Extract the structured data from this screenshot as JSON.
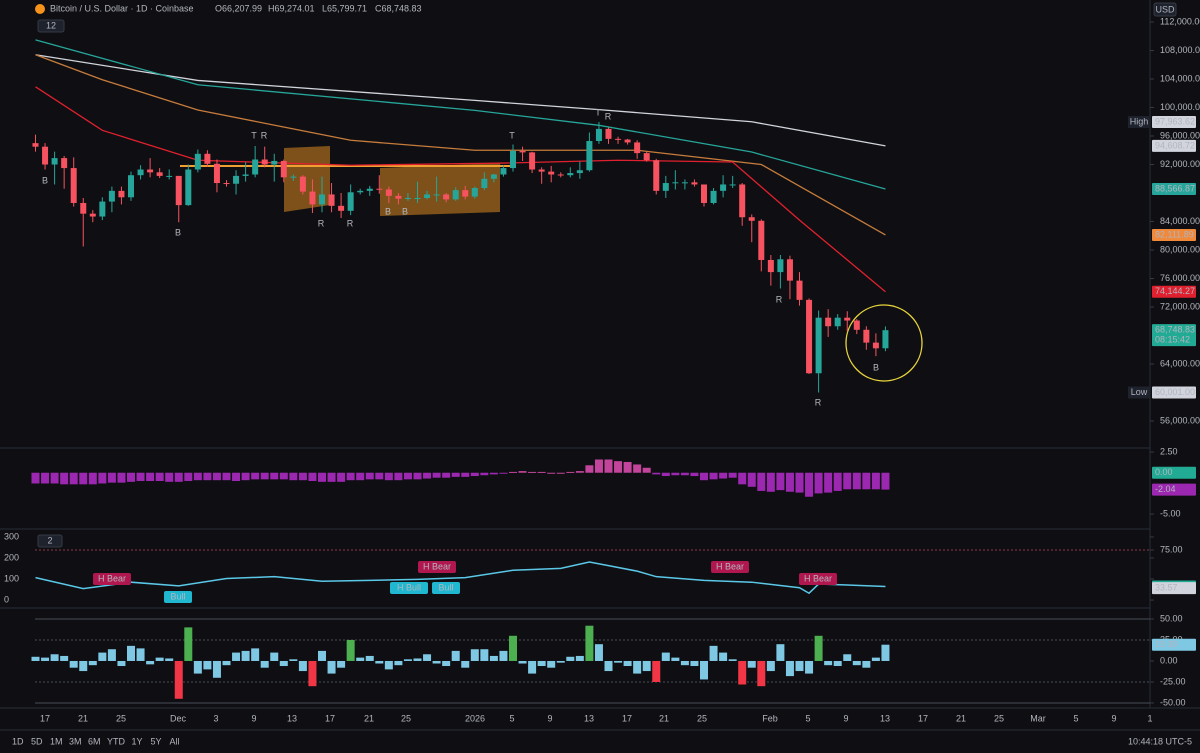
{
  "header": {
    "title": "Bitcoin / U.S. Dollar · 1D · Coinbase",
    "ohlc": [
      "O66,207.99",
      "H69,274.01",
      "L65,799.71",
      "C68,748.83"
    ],
    "badge": "12",
    "currency": "USD"
  },
  "chart_data": [
    {
      "type": "candlestick",
      "up_color": "#26a69a",
      "down_color": "#f7525f",
      "ylim": [
        52350,
        115090
      ],
      "yticks": [
        {
          "value": 112000,
          "label": "112,000.00"
        },
        {
          "value": 108000,
          "label": "108,000.00"
        },
        {
          "value": 104000,
          "label": "104,000.00"
        },
        {
          "value": 100000,
          "label": "100,000.00"
        },
        {
          "value": 96000,
          "label": "96,000.00"
        },
        {
          "value": 92000,
          "label": "92,000.00"
        },
        {
          "value": 84000,
          "label": "84,000.00"
        },
        {
          "value": 80000,
          "label": "80,000.00"
        },
        {
          "value": 76000,
          "label": "76,000.00"
        },
        {
          "value": 72000,
          "label": "72,000.00"
        },
        {
          "value": 64000,
          "label": "64,000.00"
        },
        {
          "value": 56000,
          "label": "56,000.00"
        }
      ],
      "ohlc": [
        [
          95000,
          96200,
          93800,
          94500
        ],
        [
          94500,
          95000,
          91300,
          92000
        ],
        [
          92000,
          93800,
          89200,
          92900
        ],
        [
          92900,
          93200,
          88600,
          91500
        ],
        [
          91500,
          93000,
          86100,
          86600
        ],
        [
          86600,
          87300,
          80500,
          85100
        ],
        [
          85100,
          85600,
          83900,
          84700
        ],
        [
          84700,
          87400,
          84200,
          86800
        ],
        [
          86800,
          88900,
          85300,
          88300
        ],
        [
          88300,
          88900,
          86400,
          87400
        ],
        [
          87400,
          91000,
          86900,
          90500
        ],
        [
          90500,
          91900,
          89900,
          91300
        ],
        [
          91300,
          92900,
          90200,
          90900
        ],
        [
          90900,
          91500,
          90100,
          90400
        ],
        [
          90400,
          91300,
          89900,
          90400
        ],
        [
          90400,
          90400,
          83900,
          86300
        ],
        [
          86300,
          92000,
          86200,
          91300
        ],
        [
          91300,
          94100,
          90900,
          93500
        ],
        [
          93500,
          94000,
          91700,
          92100
        ],
        [
          92100,
          92700,
          88100,
          89400
        ],
        [
          89400,
          89800,
          88900,
          89300
        ],
        [
          89300,
          91200,
          87800,
          90400
        ],
        [
          90400,
          92300,
          89600,
          90600
        ],
        [
          90600,
          94600,
          90200,
          92700
        ],
        [
          92700,
          94500,
          91600,
          92000
        ],
        [
          92000,
          93500,
          89600,
          92500
        ],
        [
          92500,
          92700,
          89500,
          90200
        ],
        [
          90200,
          90600,
          89700,
          90300
        ],
        [
          90300,
          90500,
          87800,
          88200
        ],
        [
          88200,
          89900,
          85200,
          86400
        ],
        [
          86400,
          90300,
          85300,
          87800
        ],
        [
          87800,
          89400,
          85300,
          86200
        ],
        [
          86200,
          88000,
          84500,
          85500
        ],
        [
          85500,
          89200,
          84900,
          88100
        ],
        [
          88100,
          88600,
          87800,
          88300
        ],
        [
          88300,
          89000,
          87600,
          88600
        ],
        [
          88600,
          90500,
          87900,
          88500
        ],
        [
          88500,
          88900,
          86600,
          87600
        ],
        [
          87600,
          88000,
          86400,
          87200
        ],
        [
          87200,
          88000,
          86900,
          87300
        ],
        [
          87300,
          89600,
          86600,
          87300
        ],
        [
          87300,
          88300,
          87100,
          87800
        ],
        [
          87800,
          90300,
          86800,
          87800
        ],
        [
          87800,
          88000,
          86700,
          87100
        ],
        [
          87100,
          88800,
          86900,
          88400
        ],
        [
          88400,
          89000,
          87100,
          87500
        ],
        [
          87500,
          88900,
          87200,
          88700
        ],
        [
          88700,
          90900,
          88400,
          90000
        ],
        [
          90000,
          90700,
          89500,
          90600
        ],
        [
          90600,
          91900,
          90300,
          91500
        ],
        [
          91500,
          94800,
          91000,
          93900
        ],
        [
          93900,
          94500,
          92500,
          93700
        ],
        [
          93700,
          93800,
          90800,
          91300
        ],
        [
          91300,
          91600,
          89300,
          91000
        ],
        [
          91000,
          91800,
          89500,
          90600
        ],
        [
          90600,
          90900,
          90200,
          90500
        ],
        [
          90500,
          91600,
          90200,
          90800
        ],
        [
          90800,
          92400,
          90000,
          91200
        ],
        [
          91200,
          96500,
          91000,
          95300
        ],
        [
          95300,
          97963.62,
          94900,
          97000
        ],
        [
          97000,
          97200,
          94900,
          95600
        ],
        [
          95600,
          95900,
          94900,
          95500
        ],
        [
          95500,
          95600,
          94800,
          95100
        ],
        [
          95100,
          95400,
          92800,
          93600
        ],
        [
          93600,
          93800,
          92400,
          92600
        ],
        [
          92600,
          92800,
          87800,
          88300
        ],
        [
          88300,
          90400,
          87300,
          89400
        ],
        [
          89400,
          91200,
          88500,
          89500
        ],
        [
          89500,
          89900,
          88500,
          89500
        ],
        [
          89500,
          89900,
          88900,
          89200
        ],
        [
          89200,
          89200,
          86100,
          86600
        ],
        [
          86600,
          88700,
          86400,
          88300
        ],
        [
          88300,
          90500,
          87400,
          89200
        ],
        [
          89200,
          90400,
          88700,
          89200
        ],
        [
          89200,
          89400,
          83400,
          84600
        ],
        [
          84600,
          85000,
          81100,
          84100
        ],
        [
          84100,
          84300,
          77000,
          78600
        ],
        [
          78600,
          79300,
          75000,
          76900
        ],
        [
          76900,
          79300,
          74600,
          78700
        ],
        [
          78700,
          79200,
          73100,
          75700
        ],
        [
          75700,
          76900,
          72200,
          73000
        ],
        [
          73000,
          73200,
          62600,
          62700
        ],
        [
          62700,
          71500,
          60001,
          70500
        ],
        [
          70500,
          71700,
          67800,
          69300
        ],
        [
          69300,
          71000,
          68800,
          70500
        ],
        [
          70500,
          71400,
          68600,
          70100
        ],
        [
          70100,
          70300,
          68200,
          68800
        ],
        [
          68800,
          69300,
          66000,
          67000
        ],
        [
          67000,
          68300,
          65100,
          66200
        ],
        [
          66207.99,
          69274.01,
          65799.71,
          68748.83
        ]
      ],
      "lines": [
        {
          "color": "#d1d4dc",
          "index": [
            0,
            17,
            46,
            59,
            75,
            89
          ],
          "values": [
            107400,
            103800,
            101000,
            99700,
            98000,
            94608.72
          ]
        },
        {
          "color": "#26a69a",
          "index": [
            0,
            17,
            46,
            59,
            75,
            89
          ],
          "values": [
            109500,
            103200,
            99600,
            97500,
            93750,
            88566.87
          ]
        },
        {
          "color": "#c77c3c",
          "index": [
            0,
            7,
            17,
            33,
            46,
            63,
            76,
            89
          ],
          "values": [
            107400,
            103900,
            99650,
            95400,
            94000,
            94000,
            92000,
            82111.89
          ]
        },
        {
          "color": "#e0202e",
          "index": [
            0,
            7,
            17,
            33,
            49,
            61,
            73,
            80,
            89
          ],
          "values": [
            102900,
            96800,
            92600,
            91900,
            92200,
            92600,
            92350,
            84200,
            74144.27
          ]
        }
      ],
      "price_labels": [
        {
          "tag": "High",
          "value": 97963.62,
          "label": "97,963.62",
          "color": "#d1d4dc"
        },
        {
          "value": 94608.72,
          "label": "94,608.72",
          "color": "#d1d4dc"
        },
        {
          "value": 88566.87,
          "label": "88,566.87",
          "color": "#26a69a"
        },
        {
          "value": 82111.89,
          "label": "82,111.89",
          "color": "#f0893a"
        },
        {
          "value": 74144.27,
          "label": "74,144.27",
          "color": "#e0202e"
        },
        {
          "value": 68748.83,
          "label": "68,748.83",
          "countdown": "08:15:42",
          "color": "#22ab94"
        },
        {
          "tag": "Low",
          "value": 60001,
          "label": "60,001.00",
          "color": "#d1d4dc"
        }
      ],
      "signals": [
        "B",
        "B",
        "T",
        "R",
        "R",
        "R",
        "B",
        "B",
        "T",
        "T",
        "R",
        "R",
        "R",
        "B"
      ]
    },
    {
      "type": "bar",
      "colors": {
        "up": "#c2459b",
        "down": "#9c27b0"
      },
      "ylim": [
        -6.56,
        2.87
      ],
      "yticks": [
        {
          "value": 2.5,
          "label": "2.50"
        },
        {
          "value": -5,
          "label": "-5.00"
        }
      ],
      "values": [
        -1.3,
        -1.3,
        -1.3,
        -1.4,
        -1.4,
        -1.4,
        -1.4,
        -1.3,
        -1.2,
        -1.2,
        -1.1,
        -1.0,
        -1.0,
        -1.0,
        -1.1,
        -1.1,
        -1.0,
        -0.9,
        -0.9,
        -0.9,
        -0.9,
        -1.0,
        -0.9,
        -0.8,
        -0.8,
        -0.8,
        -0.8,
        -0.9,
        -0.9,
        -1.0,
        -1.1,
        -1.1,
        -1.1,
        -0.9,
        -0.9,
        -0.8,
        -0.8,
        -0.9,
        -0.9,
        -0.8,
        -0.8,
        -0.7,
        -0.6,
        -0.6,
        -0.5,
        -0.5,
        -0.4,
        -0.3,
        -0.2,
        -0.1,
        0.1,
        0.2,
        0.1,
        0.1,
        0.0,
        0.0,
        0.1,
        0.2,
        0.9,
        1.6,
        1.6,
        1.4,
        1.3,
        1.0,
        0.6,
        -0.2,
        -0.4,
        -0.3,
        -0.3,
        -0.4,
        -0.9,
        -0.8,
        -0.7,
        -0.6,
        -1.4,
        -1.7,
        -2.2,
        -2.3,
        -2.1,
        -2.3,
        -2.4,
        -2.9,
        -2.5,
        -2.4,
        -2.2,
        -2.0,
        -2.0,
        -2.0,
        -2.0,
        -2.04
      ],
      "last_labels": [
        {
          "value": 0,
          "label": "0.00",
          "color": "#22ab94"
        },
        {
          "value": -2.04,
          "label": "-2.04",
          "color": "#9c27b0"
        }
      ]
    },
    {
      "type": "line",
      "badge": "2",
      "ylim": [
        -33,
        333
      ],
      "yticks": [
        0,
        100,
        200,
        300
      ],
      "y2lim": [
        13,
        96.8
      ],
      "y2ticks": [
        {
          "value": 75,
          "label": "75.00"
        }
      ],
      "series": [
        {
          "color": "#5bc8e8",
          "axis": "y2",
          "index": [
            0,
            5,
            10,
            15,
            20,
            25,
            30,
            35,
            40,
            45,
            50,
            55,
            58,
            60,
            63,
            65,
            70,
            75,
            80,
            81,
            82,
            85,
            89
          ],
          "values": [
            45,
            33,
            40,
            36,
            44,
            46,
            41,
            42,
            43,
            45,
            53,
            55,
            62,
            58,
            52,
            46,
            42,
            40,
            34,
            28,
            38,
            37,
            35.29
          ]
        }
      ],
      "last_labels": [
        {
          "value": 35.29,
          "label": "35.29",
          "color": "#22ab94"
        },
        {
          "value": 33.57,
          "label": "33.57",
          "color": "#d1d4dc"
        }
      ],
      "annotations": [
        "H Bear",
        "Bull",
        "H Bear",
        "H Bull",
        "Bull",
        "H Bear",
        "H Bear"
      ]
    },
    {
      "type": "bar",
      "colors": {
        "normal": "#7ec8e3",
        "up": "#4caf50",
        "down": "#f23645"
      },
      "ylim": [
        -54.8,
        61.9
      ],
      "yticks": [
        {
          "value": 50,
          "label": "50.00"
        },
        {
          "value": 25,
          "label": "25.00"
        },
        {
          "value": 0,
          "label": "0.00"
        },
        {
          "value": -25,
          "label": "-25.00"
        },
        {
          "value": -50,
          "label": "-50.00"
        }
      ],
      "values": [
        5,
        4,
        8,
        6,
        -8,
        -12,
        -5,
        10,
        14,
        -6,
        18,
        15,
        -4,
        4,
        3,
        -45,
        40,
        -15,
        -10,
        -20,
        -5,
        10,
        12,
        15,
        -8,
        10,
        -6,
        2,
        -12,
        -30,
        12,
        -15,
        -8,
        25,
        4,
        6,
        -3,
        -10,
        -5,
        2,
        3,
        8,
        -3,
        -6,
        12,
        -8,
        14,
        14,
        6,
        12,
        30,
        -3,
        -15,
        -6,
        -8,
        -2,
        5,
        6,
        42,
        20,
        -12,
        -2,
        -6,
        -15,
        -12,
        -25,
        10,
        4,
        -5,
        -6,
        -22,
        18,
        10,
        2,
        -28,
        -8,
        -30,
        -12,
        20,
        -18,
        -12,
        -15,
        30,
        -5,
        -6,
        8,
        -5,
        -8,
        4,
        19.38
      ],
      "last_labels": [
        {
          "value": 19.38,
          "label": "19.38",
          "color": "#7ec8e3"
        }
      ]
    }
  ],
  "x_axis": {
    "labels": [
      "17",
      "21",
      "25",
      "Dec",
      "3",
      "9",
      "13",
      "17",
      "21",
      "25",
      "2026",
      "5",
      "9",
      "13",
      "17",
      "21",
      "25",
      "Feb",
      "5",
      "9",
      "13",
      "17",
      "21",
      "25",
      "Mar",
      "5",
      "9",
      "1"
    ]
  },
  "toolbar": {
    "ranges": [
      "1D",
      "5D",
      "1M",
      "3M",
      "6M",
      "YTD",
      "1Y",
      "5Y",
      "All"
    ],
    "clock": "10:44:18 UTC-5"
  }
}
